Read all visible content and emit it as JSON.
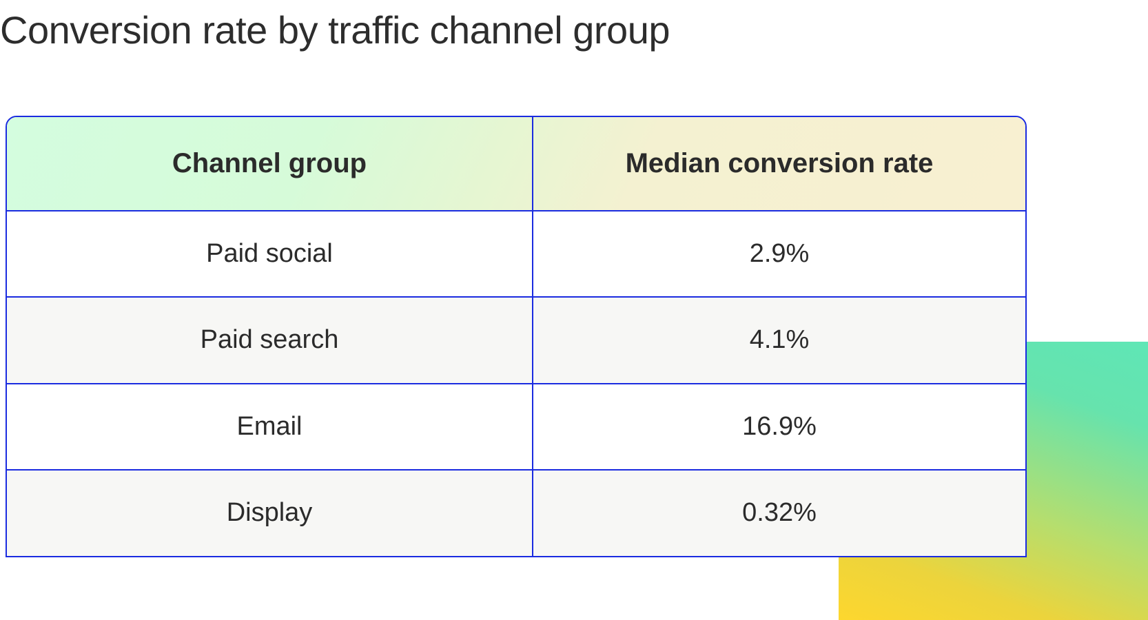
{
  "title": "Conversion rate by traffic channel group",
  "chart_data": {
    "type": "table",
    "title": "Conversion rate by traffic channel group",
    "columns": [
      "Channel group",
      "Median conversion rate"
    ],
    "rows": [
      {
        "channel": "Paid social",
        "rate": "2.9%",
        "value": 2.9
      },
      {
        "channel": "Paid search",
        "rate": "4.1%",
        "value": 4.1
      },
      {
        "channel": "Email",
        "rate": "16.9%",
        "value": 16.9
      },
      {
        "channel": "Display",
        "rate": "0.32%",
        "value": 0.32
      }
    ]
  },
  "colors": {
    "table_border": "#1a2be0",
    "header_gradient_start": "#d4fddf",
    "header_gradient_end": "#f8f0d1",
    "alt_row": "#f7f7f5",
    "deco_top": "#5fe6b6",
    "deco_bottom": "#fdd72e",
    "text": "#2b2b2b"
  }
}
